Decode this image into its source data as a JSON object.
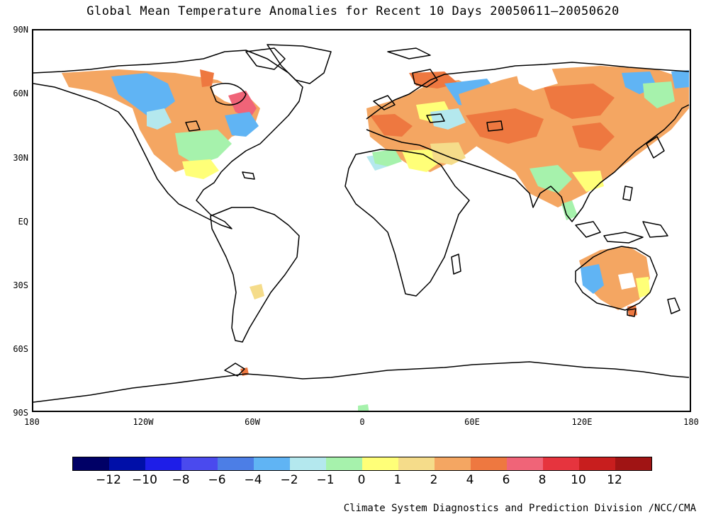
{
  "title": "Global Mean Temperature Anomalies for Recent 10 Days  20050611–20050620",
  "lat_labels": [
    "90N",
    "60N",
    "30N",
    "EQ",
    "30S",
    "60S",
    "90S"
  ],
  "lon_labels": [
    "180",
    "120W",
    "60W",
    "0",
    "60E",
    "120E",
    "180"
  ],
  "legend": {
    "colors": [
      "#000066",
      "#000fa8",
      "#1e1ee8",
      "#4a4aee",
      "#4c7ee6",
      "#60b4f4",
      "#b4e8ee",
      "#a6f2ac",
      "#ffff78",
      "#f5dc8a",
      "#f4a662",
      "#ee7840",
      "#f06478",
      "#e6343e",
      "#c81e1e",
      "#a01414"
    ],
    "labels": [
      "−12",
      "−10",
      "−8",
      "−6",
      "−4",
      "−2",
      "−1",
      "0",
      "1",
      "2",
      "4",
      "6",
      "8",
      "10",
      "12"
    ]
  },
  "credit": "Climate System Diagnostics and Prediction Division /NCC/CMA"
}
